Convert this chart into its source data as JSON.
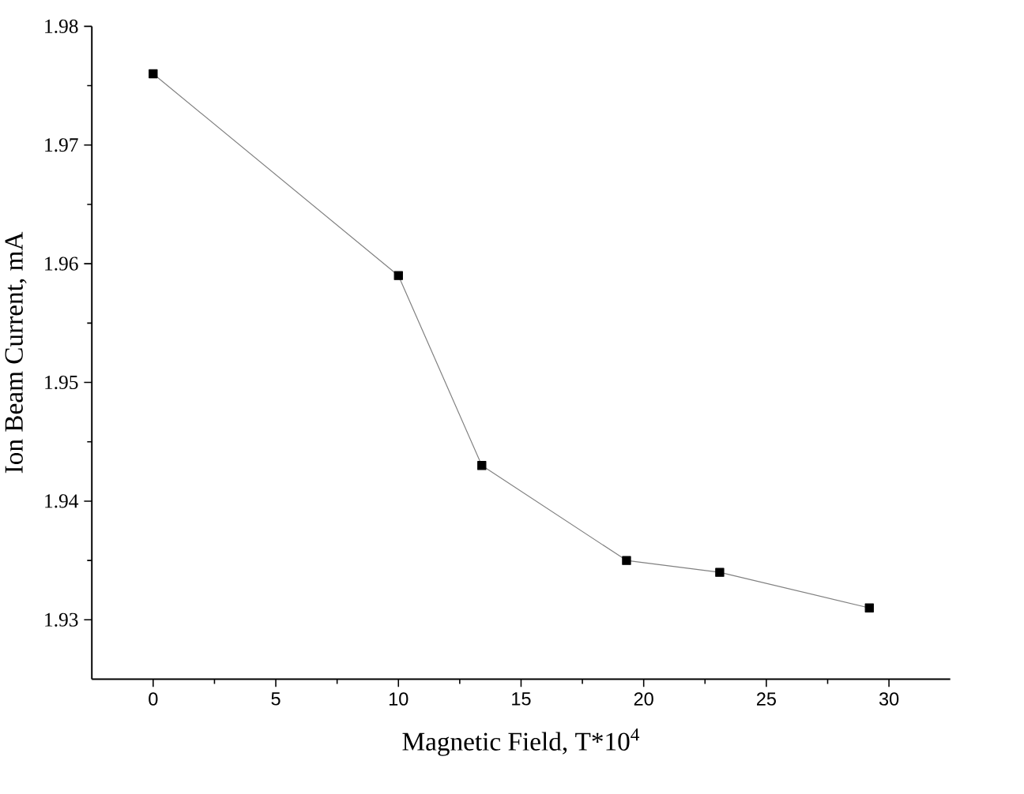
{
  "chart_data": {
    "type": "line",
    "xlabel": "Magnetic Field, T*10$^{4}$",
    "ylabel": "Ion Beam Current, mA",
    "x": [
      0,
      10,
      13.4,
      19.3,
      23.1,
      29.2
    ],
    "series": [
      {
        "color": "#808080",
        "values": [
          1.976,
          1.959,
          1.943,
          1.935,
          1.934,
          1.931
        ]
      }
    ],
    "marker": "square",
    "line_style": "solid",
    "xlim": [
      -2.5,
      32.5
    ],
    "xticks": [
      0,
      5,
      10,
      15,
      20,
      25,
      30
    ],
    "ylim": [
      1.925,
      1.98
    ],
    "yticks": [
      1.93,
      1.94,
      1.95,
      1.96,
      1.97,
      1.98
    ]
  }
}
